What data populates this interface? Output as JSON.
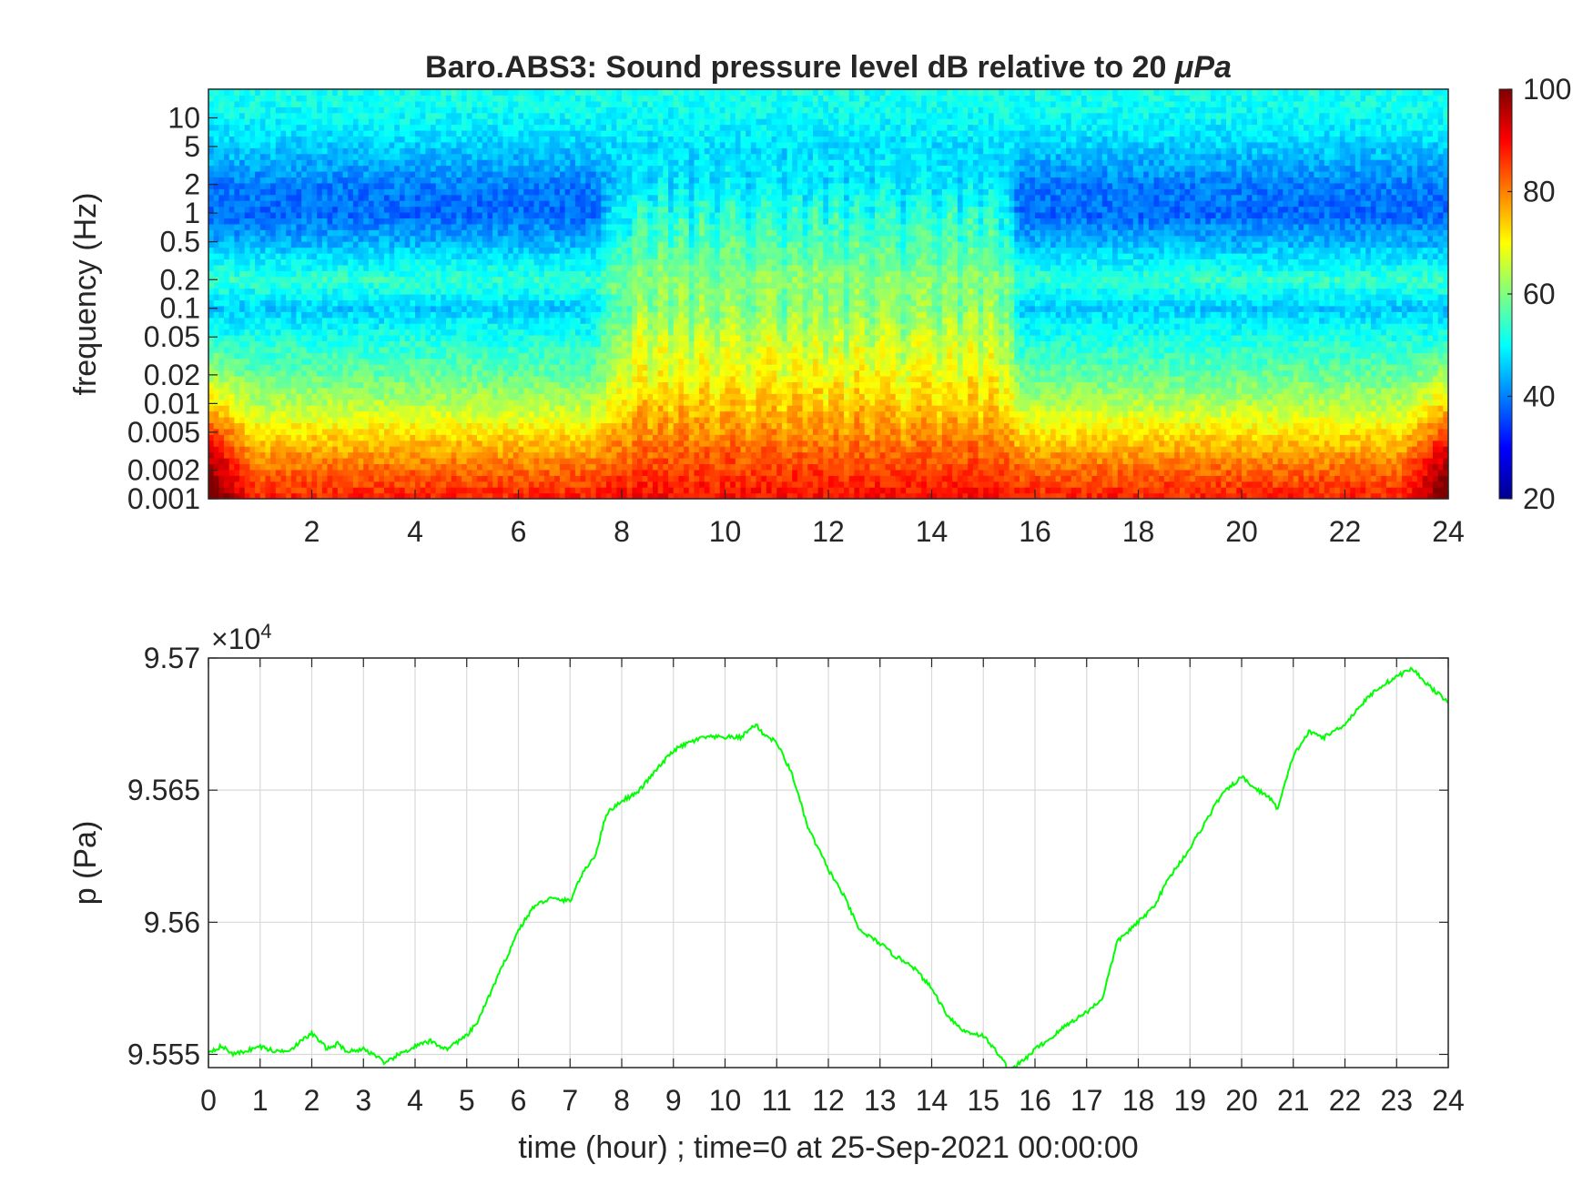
{
  "chart_data": [
    {
      "type": "heatmap",
      "title": "Baro.ABS3: Sound pressure level dB relative to 20",
      "title_unit": "μPa",
      "xlabel": "",
      "ylabel": "frequency (Hz)",
      "y_scale": "log",
      "xlim": [
        0,
        24
      ],
      "ylim": [
        0.001,
        20
      ],
      "x_ticks": [
        2,
        4,
        6,
        8,
        10,
        12,
        14,
        16,
        18,
        20,
        22,
        24
      ],
      "x_tick_labels": [
        "2",
        "4",
        "6",
        "8",
        "10",
        "12",
        "14",
        "16",
        "18",
        "20",
        "22",
        "24"
      ],
      "y_ticks": [
        0.001,
        0.002,
        0.005,
        0.01,
        0.02,
        0.05,
        0.1,
        0.2,
        0.5,
        1,
        2,
        5,
        10
      ],
      "y_tick_labels": [
        "0.001",
        "0.002",
        "0.005",
        "0.01",
        "0.02",
        "0.05",
        "0.1",
        "0.2",
        "0.5",
        "1",
        "2",
        "5",
        "10"
      ],
      "colormap": "jet",
      "colorbar": {
        "range": [
          20,
          100
        ],
        "ticks": [
          20,
          40,
          60,
          80,
          100
        ],
        "tick_labels": [
          "20",
          "40",
          "60",
          "80",
          "100"
        ]
      },
      "level_profile": {
        "description_freq_hz": [
          0.001,
          0.002,
          0.005,
          0.01,
          0.02,
          0.05,
          0.1,
          0.2,
          0.5,
          1,
          2,
          5,
          10,
          20
        ],
        "quiet_db": [
          88,
          82,
          72,
          64,
          58,
          52,
          46,
          54,
          44,
          38,
          40,
          46,
          50,
          52
        ],
        "active_db": [
          90,
          86,
          80,
          76,
          72,
          68,
          64,
          62,
          58,
          56,
          50,
          48,
          50,
          52
        ],
        "active_hours": [
          8,
          15.5
        ]
      }
    },
    {
      "type": "line",
      "xlabel": "time (hour) ; time=0 at 25-Sep-2021 00:00:00",
      "ylabel": "p (Pa)",
      "y_exponent_label": "×10",
      "y_exponent": "4",
      "xlim": [
        0,
        24
      ],
      "ylim": [
        95545,
        95700
      ],
      "grid": true,
      "x_ticks": [
        0,
        1,
        2,
        3,
        4,
        5,
        6,
        7,
        8,
        9,
        10,
        11,
        12,
        13,
        14,
        15,
        16,
        17,
        18,
        19,
        20,
        21,
        22,
        23,
        24
      ],
      "x_tick_labels": [
        "0",
        "1",
        "2",
        "3",
        "4",
        "5",
        "6",
        "7",
        "8",
        "9",
        "10",
        "11",
        "12",
        "13",
        "14",
        "15",
        "16",
        "17",
        "18",
        "19",
        "20",
        "21",
        "22",
        "23",
        "24"
      ],
      "y_ticks": [
        95550,
        95600,
        95650,
        95700
      ],
      "y_tick_labels": [
        "9.555",
        "9.56",
        "9.565",
        "9.57"
      ],
      "color": "#00ff00",
      "series": [
        {
          "x": [
            0,
            0.25,
            0.5,
            1,
            1.3,
            1.6,
            1.8,
            2,
            2.3,
            2.5,
            2.7,
            3,
            3.3,
            3.4,
            3.6,
            4,
            4.3,
            4.6,
            5,
            5.2,
            5.5,
            5.8,
            6,
            6.3,
            6.6,
            7,
            7.2,
            7.5,
            7.7,
            8,
            8.3,
            8.6,
            9,
            9.3,
            9.6,
            10,
            10.3,
            10.6,
            10.7,
            11,
            11.3,
            11.6,
            12,
            12.3,
            12.6,
            13,
            13.3,
            13.6,
            14,
            14.3,
            14.6,
            15,
            15.3,
            15.5,
            15.8,
            16,
            16.3,
            16.6,
            17,
            17.3,
            17.6,
            18,
            18.3,
            18.6,
            19,
            19.3,
            19.6,
            20,
            20.3,
            20.5,
            20.7,
            21,
            21.3,
            21.6,
            22,
            22.3,
            22.6,
            23,
            23.3,
            23.6,
            24
          ],
          "y": [
            95551,
            95553,
            95550,
            95553,
            95551,
            95552,
            95555,
            95558,
            95552,
            95554,
            95551,
            95552,
            95549,
            95546,
            95549,
            95553,
            95555,
            95552,
            95557,
            95562,
            95575,
            95588,
            95597,
            95606,
            95609,
            95608,
            95617,
            95626,
            95641,
            95646,
            95649,
            95656,
            95665,
            95668,
            95670,
            95670,
            95670,
            95675,
            95672,
            95668,
            95656,
            95636,
            95620,
            95610,
            95597,
            95592,
            95587,
            95584,
            95575,
            95565,
            95559,
            95557,
            95550,
            95544,
            95548,
            95552,
            95556,
            95561,
            95566,
            95571,
            95593,
            95600,
            95606,
            95617,
            95628,
            95638,
            95648,
            95655,
            95650,
            95648,
            95643,
            95663,
            95672,
            95670,
            95675,
            95682,
            95688,
            95693,
            95696,
            95690,
            95683
          ]
        }
      ]
    }
  ]
}
